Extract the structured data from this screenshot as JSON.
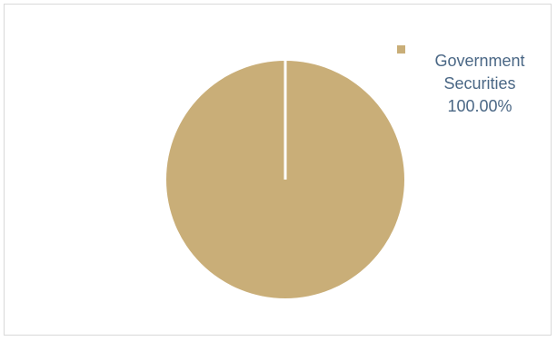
{
  "chart_data": {
    "type": "pie",
    "title": "",
    "slices": [
      {
        "label_lines": [
          "Government",
          "Securities",
          "100.00%"
        ],
        "label": "Government Securities",
        "value": 100.0,
        "percent_label": "100.00%",
        "color": "#c9ae78"
      }
    ],
    "legend_position": "top-right",
    "separator_color": "#ffffff",
    "legend_text_color": "#4a6785"
  }
}
